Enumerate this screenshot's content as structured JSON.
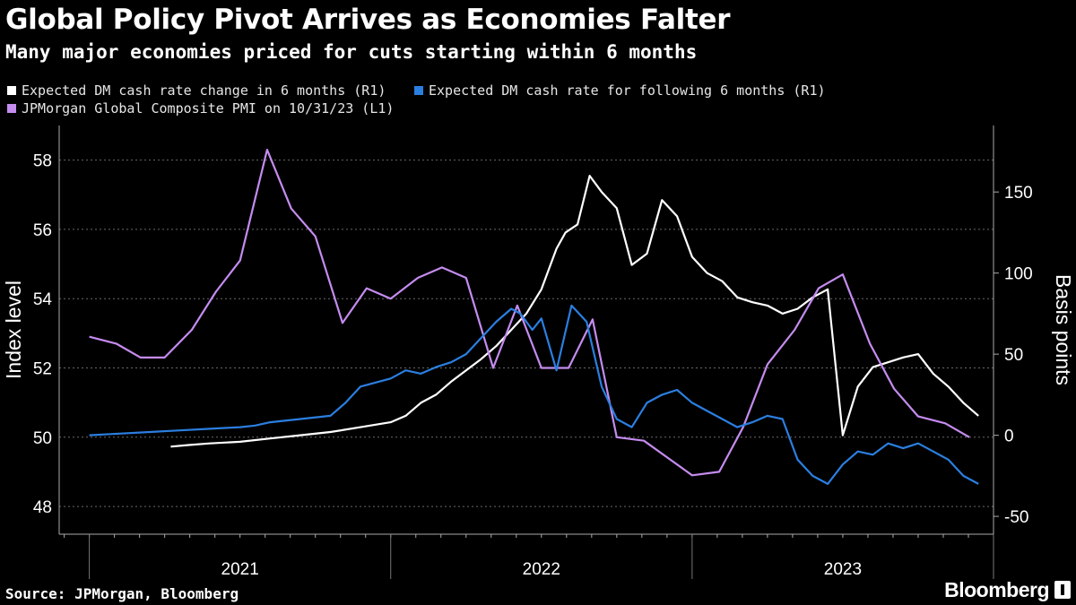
{
  "header": {
    "title": "Global Policy Pivot Arrives as Economies Falter",
    "subtitle": "Many major economies priced for cuts starting within 6 months"
  },
  "footer": {
    "source": "Source: JPMorgan, Bloomberg",
    "brand": "Bloomberg"
  },
  "chart_data": {
    "type": "line",
    "title": "Global Policy Pivot Arrives as Economies Falter",
    "subtitle": "Many major economies priced for cuts starting within 6 months",
    "x_range": [
      2020.9,
      2024.0
    ],
    "x_ticks": [
      {
        "label": "2021",
        "pos": 2021.5
      },
      {
        "label": "2022",
        "pos": 2022.5
      },
      {
        "label": "2023",
        "pos": 2023.5
      }
    ],
    "left_axis": {
      "label": "Index level",
      "range": [
        47.2,
        59.0
      ],
      "ticks": [
        48,
        50,
        52,
        54,
        56,
        58
      ]
    },
    "right_axis": {
      "label": "Basis points",
      "range": [
        -61,
        191
      ],
      "ticks": [
        -50,
        0,
        50,
        100,
        150
      ]
    },
    "legend": {
      "white": "Expected DM cash rate change in 6 months (R1)",
      "blue": "Expected DM cash rate for following 6 months (R1)",
      "purple": "JPMorgan Global Composite PMI on 10/31/23 (L1)"
    },
    "colors": {
      "white": "#ffffff",
      "blue": "#2b7fe0",
      "purple": "#c58cf0"
    },
    "series": [
      {
        "name": "JPMorgan Global Composite PMI on 10/31/23 (L1)",
        "axis": "left",
        "color": "#c58cf0",
        "x": [
          2021.0,
          2021.09,
          2021.17,
          2021.25,
          2021.34,
          2021.42,
          2021.5,
          2021.59,
          2021.67,
          2021.75,
          2021.84,
          2021.92,
          2022.0,
          2022.09,
          2022.17,
          2022.25,
          2022.34,
          2022.42,
          2022.5,
          2022.59,
          2022.67,
          2022.75,
          2022.84,
          2022.92,
          2023.0,
          2023.09,
          2023.17,
          2023.25,
          2023.34,
          2023.42,
          2023.5,
          2023.59,
          2023.67,
          2023.75,
          2023.84,
          2023.92
        ],
        "values": [
          52.9,
          52.7,
          52.3,
          52.3,
          53.1,
          54.2,
          55.1,
          58.3,
          56.6,
          55.8,
          53.3,
          54.3,
          54.0,
          54.6,
          54.9,
          54.6,
          52.0,
          53.8,
          52.0,
          52.0,
          53.4,
          50.0,
          49.9,
          49.4,
          48.9,
          49.0,
          50.3,
          52.1,
          53.1,
          54.3,
          54.7,
          52.7,
          51.4,
          50.6,
          50.4,
          50.0
        ]
      },
      {
        "name": "Expected DM cash rate change in 6 months (R1)",
        "axis": "right",
        "color": "#ffffff",
        "x": [
          2021.27,
          2021.33,
          2021.4,
          2021.5,
          2021.6,
          2021.7,
          2021.8,
          2021.9,
          2022.0,
          2022.05,
          2022.1,
          2022.15,
          2022.2,
          2022.25,
          2022.3,
          2022.35,
          2022.4,
          2022.45,
          2022.5,
          2022.55,
          2022.58,
          2022.62,
          2022.66,
          2022.7,
          2022.75,
          2022.8,
          2022.85,
          2022.9,
          2022.95,
          2023.0,
          2023.05,
          2023.1,
          2023.15,
          2023.2,
          2023.25,
          2023.3,
          2023.35,
          2023.4,
          2023.45,
          2023.5,
          2023.55,
          2023.6,
          2023.65,
          2023.7,
          2023.75,
          2023.8,
          2023.85,
          2023.9,
          2023.95
        ],
        "values": [
          -7,
          -6,
          -5,
          -4,
          -2,
          0,
          2,
          5,
          8,
          12,
          20,
          25,
          33,
          40,
          47,
          55,
          65,
          75,
          90,
          115,
          125,
          130,
          160,
          150,
          140,
          105,
          112,
          145,
          135,
          110,
          100,
          95,
          85,
          82,
          80,
          75,
          78,
          85,
          90,
          0,
          30,
          42,
          45,
          48,
          50,
          38,
          30,
          20,
          12
        ]
      },
      {
        "name": "Expected DM cash rate for following 6 months (R1)",
        "axis": "right",
        "color": "#2b7fe0",
        "x": [
          2021.0,
          2021.1,
          2021.2,
          2021.3,
          2021.4,
          2021.5,
          2021.55,
          2021.6,
          2021.7,
          2021.8,
          2021.85,
          2021.9,
          2022.0,
          2022.05,
          2022.1,
          2022.15,
          2022.2,
          2022.25,
          2022.3,
          2022.35,
          2022.4,
          2022.43,
          2022.47,
          2022.5,
          2022.55,
          2022.6,
          2022.65,
          2022.7,
          2022.75,
          2022.8,
          2022.85,
          2022.9,
          2022.95,
          2023.0,
          2023.05,
          2023.1,
          2023.15,
          2023.2,
          2023.25,
          2023.3,
          2023.35,
          2023.4,
          2023.45,
          2023.5,
          2023.55,
          2023.6,
          2023.65,
          2023.7,
          2023.75,
          2023.8,
          2023.85,
          2023.9,
          2023.95
        ],
        "values": [
          0,
          1,
          2,
          3,
          4,
          5,
          6,
          8,
          10,
          12,
          20,
          30,
          35,
          40,
          38,
          42,
          45,
          50,
          60,
          70,
          78,
          75,
          65,
          72,
          40,
          80,
          70,
          30,
          10,
          5,
          20,
          25,
          28,
          20,
          15,
          10,
          5,
          8,
          12,
          10,
          -15,
          -25,
          -30,
          -18,
          -10,
          -12,
          -5,
          -8,
          -5,
          -10,
          -15,
          -25,
          -30
        ]
      }
    ]
  }
}
